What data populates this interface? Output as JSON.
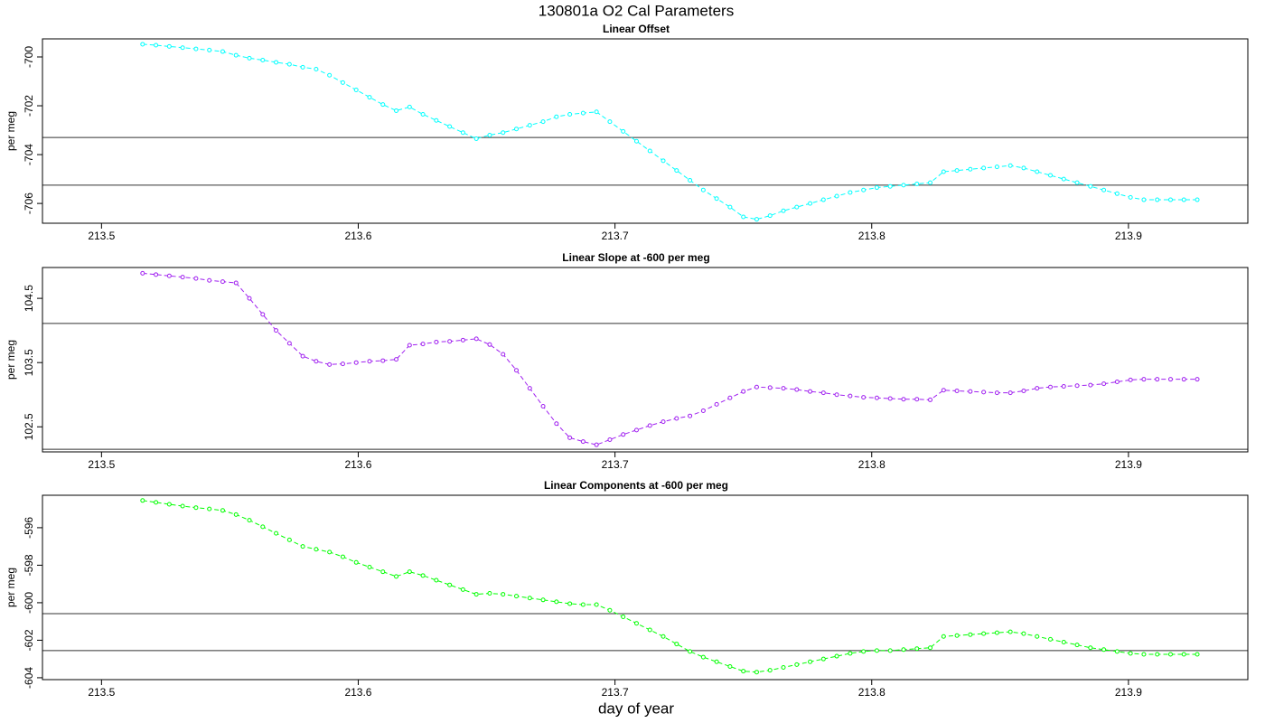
{
  "title": "130801a   O2 Cal Parameters",
  "xlabel": "day of year",
  "chart_data": [
    {
      "type": "line",
      "title": "Linear Offset",
      "ylabel": "per meg",
      "xlim": [
        213.477,
        213.9465
      ],
      "xticks": [
        213.5,
        213.6,
        213.7,
        213.8,
        213.9
      ],
      "ylim": [
        -706.81,
        -699.26
      ],
      "yticks": [
        -700,
        -702,
        -704,
        -706
      ],
      "hlines": [
        -703.3,
        -705.25
      ],
      "x": [
        213.516,
        213.5212,
        213.5264,
        213.5316,
        213.5368,
        213.542,
        213.5472,
        213.5524,
        213.5576,
        213.5628,
        213.568,
        213.5732,
        213.5784,
        213.5836,
        213.5888,
        213.594,
        213.5992,
        213.6044,
        213.6096,
        213.6148,
        213.62,
        213.6252,
        213.6304,
        213.6356,
        213.6408,
        213.646,
        213.6512,
        213.6564,
        213.6616,
        213.6668,
        213.672,
        213.6772,
        213.6824,
        213.6876,
        213.6928,
        213.698,
        213.7032,
        213.7084,
        213.7136,
        213.7188,
        213.724,
        213.7292,
        213.7344,
        213.7396,
        213.7448,
        213.75,
        213.7552,
        213.7604,
        213.7656,
        213.7708,
        213.776,
        213.7812,
        213.7864,
        213.7916,
        213.7968,
        213.802,
        213.8072,
        213.8124,
        213.8176,
        213.8228,
        213.828,
        213.8332,
        213.8384,
        213.8436,
        213.8488,
        213.854,
        213.8592,
        213.8644,
        213.8696,
        213.8748,
        213.88,
        213.8852,
        213.8904,
        213.8956,
        213.9008,
        213.906,
        213.9112,
        213.9164,
        213.9216,
        213.9268
      ],
      "series": [
        {
          "color": "#00ffff",
          "values": [
            -699.48,
            -699.52,
            -699.57,
            -699.62,
            -699.67,
            -699.72,
            -699.78,
            -699.93,
            -700.05,
            -700.13,
            -700.22,
            -700.3,
            -700.42,
            -700.5,
            -700.75,
            -701.05,
            -701.35,
            -701.65,
            -701.95,
            -702.2,
            -702.05,
            -702.35,
            -702.6,
            -702.85,
            -703.1,
            -703.35,
            -703.2,
            -703.1,
            -702.95,
            -702.8,
            -702.65,
            -702.45,
            -702.35,
            -702.3,
            -702.25,
            -702.65,
            -703.05,
            -703.45,
            -703.85,
            -704.25,
            -704.65,
            -705.05,
            -705.45,
            -705.8,
            -706.15,
            -706.55,
            -706.65,
            -706.5,
            -706.3,
            -706.15,
            -706.0,
            -705.85,
            -705.7,
            -705.55,
            -705.45,
            -705.35,
            -705.3,
            -705.25,
            -705.2,
            -705.15,
            -704.7,
            -704.65,
            -704.6,
            -704.55,
            -704.5,
            -704.45,
            -704.55,
            -704.7,
            -704.85,
            -705.0,
            -705.15,
            -705.3,
            -705.45,
            -705.6,
            -705.75,
            -705.85,
            -705.85,
            -705.85,
            -705.85,
            -705.85
          ]
        }
      ]
    },
    {
      "type": "line",
      "title": "Linear Slope at -600 per meg",
      "ylabel": "per meg",
      "xlim": [
        213.477,
        213.9465
      ],
      "xticks": [
        213.5,
        213.6,
        213.7,
        213.8,
        213.9
      ],
      "ylim": [
        102.11,
        104.98
      ],
      "yticks": [
        104.5,
        103.5,
        102.5
      ],
      "hlines": [
        104.11,
        102.15
      ],
      "x": [
        213.516,
        213.5212,
        213.5264,
        213.5316,
        213.5368,
        213.542,
        213.5472,
        213.5524,
        213.5576,
        213.5628,
        213.568,
        213.5732,
        213.5784,
        213.5836,
        213.5888,
        213.594,
        213.5992,
        213.6044,
        213.6096,
        213.6148,
        213.62,
        213.6252,
        213.6304,
        213.6356,
        213.6408,
        213.646,
        213.6512,
        213.6564,
        213.6616,
        213.6668,
        213.672,
        213.6772,
        213.6824,
        213.6876,
        213.6928,
        213.698,
        213.7032,
        213.7084,
        213.7136,
        213.7188,
        213.724,
        213.7292,
        213.7344,
        213.7396,
        213.7448,
        213.75,
        213.7552,
        213.7604,
        213.7656,
        213.7708,
        213.776,
        213.7812,
        213.7864,
        213.7916,
        213.7968,
        213.802,
        213.8072,
        213.8124,
        213.8176,
        213.8228,
        213.828,
        213.8332,
        213.8384,
        213.8436,
        213.8488,
        213.854,
        213.8592,
        213.8644,
        213.8696,
        213.8748,
        213.88,
        213.8852,
        213.8904,
        213.8956,
        213.9008,
        213.906,
        213.9112,
        213.9164,
        213.9216,
        213.9268
      ],
      "series": [
        {
          "color": "#a020f0",
          "values": [
            104.89,
            104.87,
            104.85,
            104.83,
            104.81,
            104.78,
            104.76,
            104.74,
            104.5,
            104.25,
            104.0,
            103.8,
            103.6,
            103.52,
            103.47,
            103.48,
            103.5,
            103.52,
            103.53,
            103.55,
            103.77,
            103.79,
            103.82,
            103.83,
            103.85,
            103.87,
            103.78,
            103.63,
            103.38,
            103.1,
            102.82,
            102.55,
            102.33,
            102.27,
            102.22,
            102.3,
            102.38,
            102.45,
            102.52,
            102.58,
            102.63,
            102.67,
            102.75,
            102.85,
            102.95,
            103.05,
            103.12,
            103.11,
            103.1,
            103.08,
            103.05,
            103.03,
            103.0,
            102.98,
            102.96,
            102.95,
            102.94,
            102.93,
            102.93,
            102.92,
            103.07,
            103.06,
            103.05,
            103.04,
            103.03,
            103.03,
            103.06,
            103.1,
            103.12,
            103.13,
            103.14,
            103.15,
            103.17,
            103.2,
            103.23,
            103.24,
            103.24,
            103.24,
            103.24,
            103.24
          ]
        }
      ]
    },
    {
      "type": "line",
      "title": "Linear Components at -600 per meg",
      "ylabel": "per meg",
      "xlim": [
        213.477,
        213.9465
      ],
      "xticks": [
        213.5,
        213.6,
        213.7,
        213.8,
        213.9
      ],
      "ylim": [
        -604.1,
        -594.27
      ],
      "yticks": [
        -596,
        -598,
        -600,
        -602,
        -604
      ],
      "hlines": [
        -600.58,
        -602.55
      ],
      "x": [
        213.516,
        213.5212,
        213.5264,
        213.5316,
        213.5368,
        213.542,
        213.5472,
        213.5524,
        213.5576,
        213.5628,
        213.568,
        213.5732,
        213.5784,
        213.5836,
        213.5888,
        213.594,
        213.5992,
        213.6044,
        213.6096,
        213.6148,
        213.62,
        213.6252,
        213.6304,
        213.6356,
        213.6408,
        213.646,
        213.6512,
        213.6564,
        213.6616,
        213.6668,
        213.672,
        213.6772,
        213.6824,
        213.6876,
        213.6928,
        213.698,
        213.7032,
        213.7084,
        213.7136,
        213.7188,
        213.724,
        213.7292,
        213.7344,
        213.7396,
        213.7448,
        213.75,
        213.7552,
        213.7604,
        213.7656,
        213.7708,
        213.776,
        213.7812,
        213.7864,
        213.7916,
        213.7968,
        213.802,
        213.8072,
        213.8124,
        213.8176,
        213.8228,
        213.828,
        213.8332,
        213.8384,
        213.8436,
        213.8488,
        213.854,
        213.8592,
        213.8644,
        213.8696,
        213.8748,
        213.88,
        213.8852,
        213.8904,
        213.8956,
        213.9008,
        213.906,
        213.9112,
        213.9164,
        213.9216,
        213.9268
      ],
      "series": [
        {
          "color": "#00ff00",
          "values": [
            -594.55,
            -594.65,
            -594.75,
            -594.85,
            -594.93,
            -595.0,
            -595.08,
            -595.3,
            -595.6,
            -595.95,
            -596.3,
            -596.65,
            -597.0,
            -597.15,
            -597.3,
            -597.55,
            -597.85,
            -598.1,
            -598.35,
            -598.6,
            -598.35,
            -598.55,
            -598.8,
            -599.05,
            -599.3,
            -599.55,
            -599.5,
            -599.55,
            -599.65,
            -599.75,
            -599.85,
            -599.95,
            -600.05,
            -600.1,
            -600.1,
            -600.4,
            -600.75,
            -601.1,
            -601.45,
            -601.8,
            -602.2,
            -602.6,
            -602.9,
            -603.15,
            -603.4,
            -603.65,
            -603.7,
            -603.6,
            -603.45,
            -603.3,
            -603.15,
            -603.0,
            -602.85,
            -602.7,
            -602.6,
            -602.55,
            -602.55,
            -602.5,
            -602.45,
            -602.4,
            -601.8,
            -601.75,
            -601.7,
            -601.65,
            -601.6,
            -601.55,
            -601.65,
            -601.8,
            -601.95,
            -602.1,
            -602.25,
            -602.4,
            -602.5,
            -602.6,
            -602.7,
            -602.75,
            -602.75,
            -602.75,
            -602.75,
            -602.75
          ]
        }
      ]
    }
  ]
}
